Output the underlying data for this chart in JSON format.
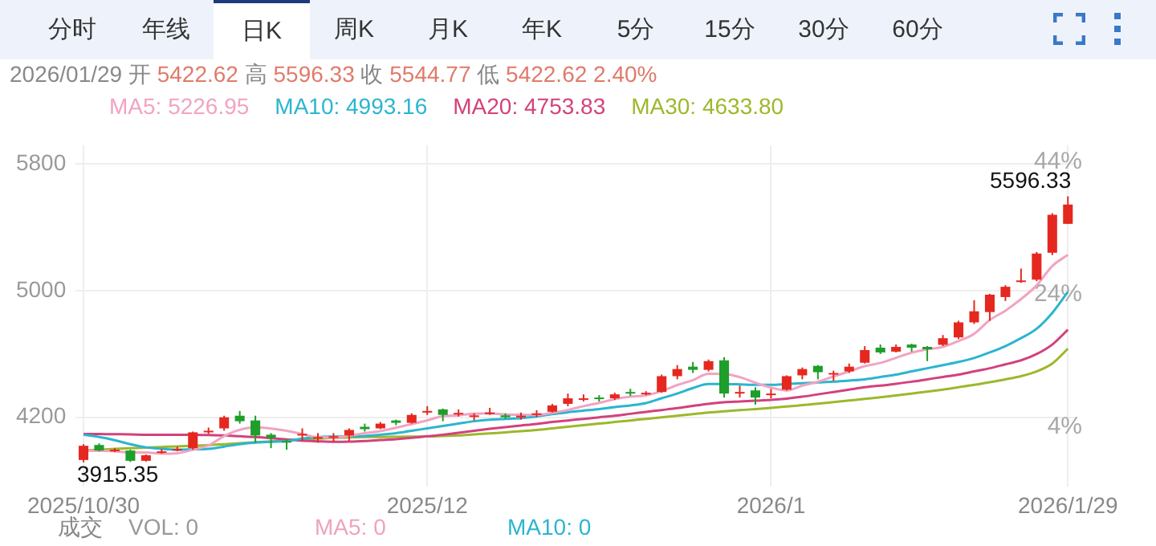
{
  "chart_data": {
    "type": "candlestick",
    "categories": [
      "2025/10/30",
      null,
      null,
      null,
      null,
      null,
      null,
      null,
      null,
      null,
      null,
      null,
      null,
      null,
      null,
      null,
      null,
      null,
      null,
      null,
      null,
      null,
      "2025/12",
      null,
      null,
      null,
      null,
      null,
      null,
      null,
      null,
      null,
      null,
      null,
      null,
      null,
      null,
      null,
      null,
      null,
      null,
      null,
      null,
      null,
      "2026/1",
      null,
      null,
      null,
      null,
      null,
      null,
      null,
      null,
      null,
      null,
      null,
      null,
      null,
      null,
      null,
      null,
      null,
      null,
      "2026/1/29"
    ],
    "ohlc": [
      [
        3930,
        4030,
        3915.35,
        4020
      ],
      [
        4025,
        4035,
        3985,
        3990
      ],
      [
        3990,
        4005,
        3980,
        3995
      ],
      [
        3990,
        3995,
        3918,
        3925
      ],
      [
        3925,
        3965,
        3920,
        3960
      ],
      [
        3980,
        4000,
        3970,
        3985
      ],
      [
        3990,
        4015,
        3985,
        4000
      ],
      [
        4005,
        4110,
        3995,
        4105
      ],
      [
        4110,
        4135,
        4095,
        4115
      ],
      [
        4130,
        4210,
        4115,
        4200
      ],
      [
        4210,
        4240,
        4160,
        4175
      ],
      [
        4180,
        4210,
        4040,
        4085
      ],
      [
        4090,
        4100,
        4005,
        4070
      ],
      [
        4050,
        4060,
        3995,
        4045
      ],
      [
        4085,
        4130,
        4050,
        4095
      ],
      [
        4070,
        4100,
        4040,
        4075
      ],
      [
        4075,
        4100,
        4045,
        4080
      ],
      [
        4085,
        4130,
        4050,
        4120
      ],
      [
        4140,
        4160,
        4110,
        4125
      ],
      [
        4130,
        4170,
        4125,
        4160
      ],
      [
        4180,
        4185,
        4150,
        4165
      ],
      [
        4165,
        4225,
        4160,
        4215
      ],
      [
        4235,
        4270,
        4215,
        4240
      ],
      [
        4250,
        4255,
        4175,
        4215
      ],
      [
        4220,
        4250,
        4205,
        4228
      ],
      [
        4205,
        4225,
        4180,
        4212
      ],
      [
        4225,
        4260,
        4215,
        4230
      ],
      [
        4212,
        4225,
        4190,
        4200
      ],
      [
        4205,
        4230,
        4185,
        4210
      ],
      [
        4215,
        4245,
        4200,
        4225
      ],
      [
        4235,
        4285,
        4230,
        4275
      ],
      [
        4285,
        4350,
        4270,
        4320
      ],
      [
        4315,
        4345,
        4300,
        4320
      ],
      [
        4325,
        4340,
        4300,
        4315
      ],
      [
        4320,
        4355,
        4310,
        4345
      ],
      [
        4360,
        4380,
        4335,
        4355
      ],
      [
        4350,
        4365,
        4340,
        4355
      ],
      [
        4360,
        4470,
        4355,
        4460
      ],
      [
        4460,
        4530,
        4440,
        4505
      ],
      [
        4520,
        4550,
        4480,
        4500
      ],
      [
        4500,
        4565,
        4490,
        4555
      ],
      [
        4560,
        4580,
        4325,
        4350
      ],
      [
        4355,
        4400,
        4325,
        4360
      ],
      [
        4370,
        4390,
        4280,
        4325
      ],
      [
        4345,
        4380,
        4320,
        4350
      ],
      [
        4375,
        4465,
        4370,
        4460
      ],
      [
        4465,
        4515,
        4440,
        4505
      ],
      [
        4525,
        4530,
        4440,
        4485
      ],
      [
        4475,
        4495,
        4430,
        4480
      ],
      [
        4490,
        4540,
        4480,
        4520
      ],
      [
        4545,
        4650,
        4540,
        4625
      ],
      [
        4640,
        4660,
        4600,
        4610
      ],
      [
        4615,
        4660,
        4610,
        4645
      ],
      [
        4660,
        4665,
        4615,
        4640
      ],
      [
        4645,
        4650,
        4555,
        4630
      ],
      [
        4658,
        4720,
        4650,
        4700
      ],
      [
        4705,
        4810,
        4695,
        4800
      ],
      [
        4800,
        4940,
        4790,
        4870
      ],
      [
        4865,
        4980,
        4810,
        4975
      ],
      [
        4960,
        5035,
        4935,
        5025
      ],
      [
        5055,
        5140,
        5050,
        5065
      ],
      [
        5070,
        5245,
        5060,
        5235
      ],
      [
        5240,
        5490,
        5225,
        5480
      ],
      [
        5422.62,
        5596.33,
        5422.62,
        5544.77
      ]
    ],
    "series": [
      {
        "name": "MA5: 5226.95",
        "color": "#f2a3c2",
        "type": "line",
        "values": [
          3990,
          3988,
          3985,
          3978,
          3978,
          3970,
          3973,
          3995,
          4022,
          4081,
          4121,
          4136,
          4129,
          4115,
          4094,
          4074,
          4073,
          4083,
          4099,
          4112,
          4134,
          4157,
          4181,
          4207,
          4213,
          4222,
          4225,
          4217,
          4216,
          4215,
          4228,
          4246,
          4270,
          4291,
          4315,
          4331,
          4338,
          4366,
          4404,
          4435,
          4475,
          4474,
          4454,
          4418,
          4388,
          4369,
          4400,
          4425,
          4458,
          4490,
          4523,
          4544,
          4576,
          4608,
          4630,
          4645,
          4683,
          4728,
          4815,
          4874,
          4947,
          5034,
          5156,
          5226.95
        ]
      },
      {
        "name": "MA10: 4993.16",
        "color": "#2bb5cf",
        "type": "line",
        "values": [
          4090,
          4075,
          4055,
          4030,
          4010,
          4000,
          3995,
          3997,
          4000,
          4015,
          4030,
          4040,
          4045,
          4050,
          4065,
          4075,
          4078,
          4080,
          4082,
          4090,
          4100,
          4115,
          4130,
          4145,
          4160,
          4175,
          4185,
          4190,
          4195,
          4205,
          4220,
          4232,
          4242,
          4252,
          4265,
          4275,
          4290,
          4320,
          4350,
          4385,
          4410,
          4410,
          4408,
          4405,
          4405,
          4410,
          4415,
          4420,
          4425,
          4432,
          4440,
          4455,
          4470,
          4490,
          4510,
          4530,
          4550,
          4575,
          4610,
          4650,
          4700,
          4760,
          4860,
          4993.16
        ]
      },
      {
        "name": "MA20: 4753.83",
        "color": "#d3417c",
        "type": "line",
        "values": [
          4095,
          4094,
          4093,
          4092,
          4090,
          4090,
          4090,
          4090,
          4088,
          4085,
          4080,
          4075,
          4068,
          4060,
          4052,
          4048,
          4045,
          4046,
          4050,
          4056,
          4062,
          4070,
          4080,
          4090,
          4102,
          4115,
          4127,
          4138,
          4148,
          4158,
          4170,
          4180,
          4190,
          4200,
          4210,
          4222,
          4234,
          4246,
          4258,
          4272,
          4285,
          4295,
          4300,
          4305,
          4310,
          4318,
          4330,
          4345,
          4360,
          4375,
          4390,
          4400,
          4412,
          4425,
          4440,
          4455,
          4470,
          4490,
          4510,
          4535,
          4560,
          4600,
          4660,
          4753.83
        ]
      },
      {
        "name": "MA30: 4633.80",
        "color": "#9cb82c",
        "type": "line",
        "values": [
          3990,
          3995,
          4000,
          4004,
          4008,
          4012,
          4016,
          4020,
          4024,
          4030,
          4036,
          4042,
          4048,
          4054,
          4060,
          4065,
          4070,
          4073,
          4075,
          4076,
          4077,
          4078,
          4079,
          4082,
          4086,
          4092,
          4098,
          4105,
          4112,
          4120,
          4130,
          4140,
          4150,
          4160,
          4170,
          4180,
          4190,
          4200,
          4210,
          4220,
          4230,
          4238,
          4245,
          4252,
          4260,
          4268,
          4277,
          4286,
          4296,
          4306,
          4316,
          4327,
          4338,
          4350,
          4362,
          4375,
          4390,
          4405,
          4422,
          4440,
          4460,
          4490,
          4540,
          4633.8
        ]
      }
    ],
    "ylim": [
      3760,
      5920
    ],
    "yticks": [
      4200,
      5000,
      5800
    ],
    "y2lim": [
      -5,
      46.5
    ],
    "y2ticks": [
      {
        "value": 4,
        "label": "4%"
      },
      {
        "value": 24,
        "label": "24%"
      },
      {
        "value": 44,
        "label": "44%"
      }
    ],
    "grid": true,
    "legend": "top left",
    "marker": "none",
    "line_style": "solid",
    "annotations": [
      "分时",
      "年线",
      "日K",
      "周K",
      "月K",
      "年K",
      "5分",
      "15分",
      "30分",
      "60分",
      "2026/01/29 开 5422.62 高 5596.33 收 5544.77 低 5422.62 2.40%",
      "成交",
      "VOL: 0",
      "MA5: 0",
      "MA10: 0",
      "5596.33",
      "3915.35"
    ]
  }
}
